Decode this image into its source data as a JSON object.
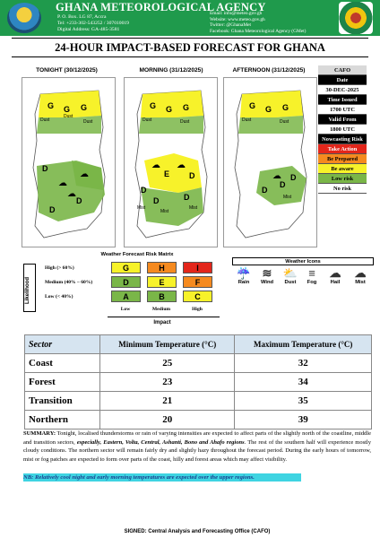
{
  "header": {
    "agency": "GHANA METEOROLOGICAL AGENCY",
    "address": [
      "P. O. Box. LG 87, Accra",
      "Tel: +233-302-543252 / 307010019",
      "Digital Address: GA-485-3581"
    ],
    "contact": [
      "Email: info@meteo.gov.gh",
      "Website: www.meteo.gov.gh",
      "Twitter: @GhanaMet",
      "Facebook: Ghana Meteorological Agency (GMet)"
    ]
  },
  "title": "24-HOUR IMPACT-BASED FORECAST FOR GHANA",
  "panels": [
    {
      "label": "TONIGHT (30/12/2025)"
    },
    {
      "label": "MORNING (31/12/2025)"
    },
    {
      "label": "AFTERNOON (31/12/2025)"
    }
  ],
  "map_labels": {
    "tonight": [
      "G",
      "G",
      "G",
      "D",
      "D",
      "D",
      "Dust",
      "Dust",
      "Dust"
    ],
    "morning": [
      "G",
      "G",
      "G",
      "E",
      "D",
      "D",
      "D",
      "D",
      "Dust",
      "Dust",
      "Mist",
      "Mist",
      "Mist"
    ],
    "afternoon": [
      "G",
      "G",
      "G",
      "D",
      "D",
      "D",
      "Dust",
      "Dust",
      "Mist"
    ]
  },
  "legend": {
    "cafo": "CAFO",
    "date_label": "Date",
    "date": "30-DEC-2025",
    "time_issued_label": "Time Issued",
    "time_issued": "1700 UTC",
    "valid_from_label": "Valid From",
    "valid_from": "1800 UTC",
    "nowcasting_label": "Nowcasting Risk",
    "take_action": "Take Action",
    "be_prepared": "Be Prepared",
    "be_aware": "Be aware",
    "low_risk": "Low risk",
    "no_risk": "No risk",
    "colors": {
      "take_action": "#e3261b",
      "be_prepared": "#f58a1f",
      "be_aware": "#f7f22a",
      "low_risk": "#7ab648",
      "no_risk": "#ffffff"
    }
  },
  "matrix": {
    "title": "Weather Forecast Risk Matrix",
    "likelihood": "Likelihood",
    "impact": "Impact",
    "rows": [
      "High (> 60%)",
      "Medium (40% – 60%)",
      "Low (< 40%)"
    ],
    "cols": [
      "Low",
      "Medium",
      "High"
    ],
    "cells": [
      [
        "G",
        "H",
        "I"
      ],
      [
        "D",
        "E",
        "F"
      ],
      [
        "A",
        "B",
        "C"
      ]
    ],
    "cell_colors": [
      [
        "#f7f22a",
        "#f58a1f",
        "#e3261b"
      ],
      [
        "#7ab648",
        "#f7f22a",
        "#f58a1f"
      ],
      [
        "#7ab648",
        "#7ab648",
        "#f7f22a"
      ]
    ]
  },
  "weather_icons": {
    "title": "Weather Icons",
    "items": [
      {
        "label": "Rain",
        "icon": "rain-icon"
      },
      {
        "label": "Wind",
        "icon": "wind-icon"
      },
      {
        "label": "Dust",
        "icon": "dust-icon"
      },
      {
        "label": "Fog",
        "icon": "fog-icon"
      },
      {
        "label": "Hail",
        "icon": "hail-icon"
      },
      {
        "label": "Mist",
        "icon": "mist-icon"
      }
    ]
  },
  "temperatures": {
    "headers": [
      "Sector",
      "Minimum Temperature (°C)",
      "Maximum Temperature (°C)"
    ],
    "rows": [
      {
        "sector": "Coast",
        "min": "25",
        "max": "32"
      },
      {
        "sector": "Forest",
        "min": "23",
        "max": "34"
      },
      {
        "sector": "Transition",
        "min": "21",
        "max": "35"
      },
      {
        "sector": "Northern",
        "min": "20",
        "max": "39"
      }
    ]
  },
  "summary": {
    "label": "SUMMARY:",
    "text1": " Tonight, localised thunderstorms or rain of varying intensities are expected to affect parts of the slightly north of the coastline, middle and transition sectors, ",
    "emphasis": "especially, Eastern, Volta, Central, Ashanti, Bono and Ahafo regions",
    "text2": ". The rest of the southern half will experience mostly cloudy conditions. The northern sector will remain fairly dry and slightly hazy throughout the forecast period. During the early hours of tomorrow, mist or fog patches are expected to form over parts of the coast, hilly and forest areas which may affect visibility."
  },
  "nb": "NB: Relatively cool night and early morning temperatures are expected over the upper regions.",
  "signed": "SIGNED: Central Analysis and Forecasting Office (CAFO)"
}
